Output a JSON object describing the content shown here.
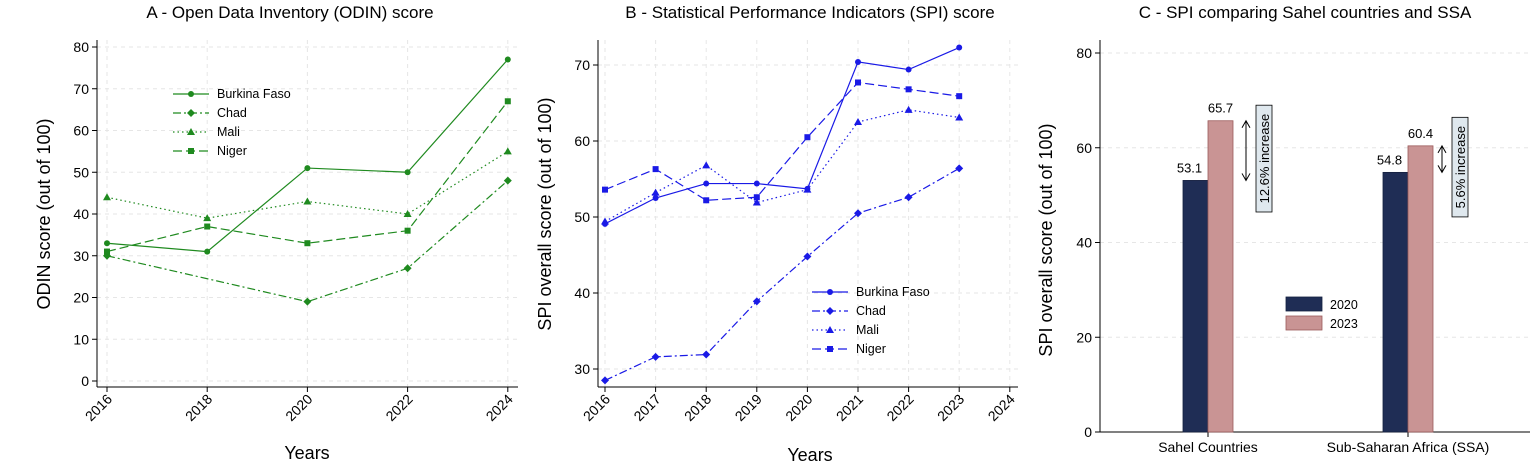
{
  "chart_data": [
    {
      "type": "line",
      "title": "A - Open Data Inventory (ODIN) score",
      "xlabel": "Years",
      "ylabel": "ODIN  score (out of 100)",
      "x": [
        2016,
        2018,
        2020,
        2022,
        2024
      ],
      "x_ticks": [
        "2016",
        "2018",
        "2020",
        "2022",
        "2024"
      ],
      "y_ticks": [
        "0",
        "10",
        "20",
        "30",
        "40",
        "50",
        "60",
        "70",
        "80"
      ],
      "ylim": [
        0,
        80
      ],
      "grid": true,
      "legend_position": "top-left",
      "color": "#1f8a1f",
      "series": [
        {
          "name": "Burkina Faso",
          "values": [
            33,
            31,
            51,
            50,
            77
          ],
          "marker": "circle",
          "dash": "solid"
        },
        {
          "name": "Chad",
          "values": [
            30,
            null,
            19,
            27,
            48
          ],
          "marker": "diamond",
          "dash": "dashdot"
        },
        {
          "name": "Mali",
          "values": [
            44,
            39,
            43,
            40,
            55
          ],
          "marker": "triangle",
          "dash": "dot"
        },
        {
          "name": "Niger",
          "values": [
            31,
            37,
            33,
            36,
            67
          ],
          "marker": "square",
          "dash": "dash"
        }
      ]
    },
    {
      "type": "line",
      "title": "B - Statistical Performance Indicators (SPI) score",
      "xlabel": "Years",
      "ylabel": "SPI overall score (out of 100)",
      "x": [
        2016,
        2017,
        2018,
        2019,
        2020,
        2021,
        2022,
        2023
      ],
      "x_ticks": [
        "2016",
        "2017",
        "2018",
        "2019",
        "2020",
        "2021",
        "2022",
        "2023",
        "2024"
      ],
      "y_ticks": [
        "30",
        "40",
        "50",
        "60",
        "70"
      ],
      "ylim": [
        28,
        74
      ],
      "grid": true,
      "legend_position": "bottom-right",
      "color": "#1a1ae6",
      "series": [
        {
          "name": "Burkina Faso",
          "values": [
            49.1,
            52.5,
            54.4,
            54.4,
            53.7,
            70.4,
            69.4,
            72.3
          ],
          "marker": "circle",
          "dash": "solid"
        },
        {
          "name": "Chad",
          "values": [
            28.5,
            31.6,
            31.9,
            38.9,
            44.8,
            50.5,
            52.6,
            56.4
          ],
          "marker": "diamond",
          "dash": "dashdot"
        },
        {
          "name": "Mali",
          "values": [
            49.4,
            53.2,
            56.8,
            51.9,
            53.6,
            62.5,
            64.1,
            63.1
          ],
          "marker": "triangle",
          "dash": "dot"
        },
        {
          "name": "Niger",
          "values": [
            53.6,
            56.3,
            52.2,
            52.6,
            60.5,
            67.7,
            66.8,
            65.9
          ],
          "marker": "square",
          "dash": "dash"
        }
      ]
    },
    {
      "type": "bar",
      "title": "C - SPI comparing Sahel countries and SSA",
      "xlabel": "",
      "ylabel": "SPI overall score (out of 100)",
      "categories": [
        "Sahel Countries",
        "Sub-Saharan Africa (SSA)"
      ],
      "y_ticks": [
        "0",
        "20",
        "40",
        "60",
        "80"
      ],
      "ylim": [
        0,
        80
      ],
      "grid": true,
      "legend_position": "center",
      "series": [
        {
          "name": "2020",
          "values": [
            53.1,
            54.8
          ],
          "labels": [
            "53.1",
            "54.8"
          ],
          "color": "#1f2d55"
        },
        {
          "name": "2023",
          "values": [
            65.7,
            60.4
          ],
          "labels": [
            "65.7",
            "60.4"
          ],
          "color": "#c99494"
        }
      ],
      "annotations": [
        "12.6% increase",
        "5.6% increase"
      ]
    }
  ]
}
